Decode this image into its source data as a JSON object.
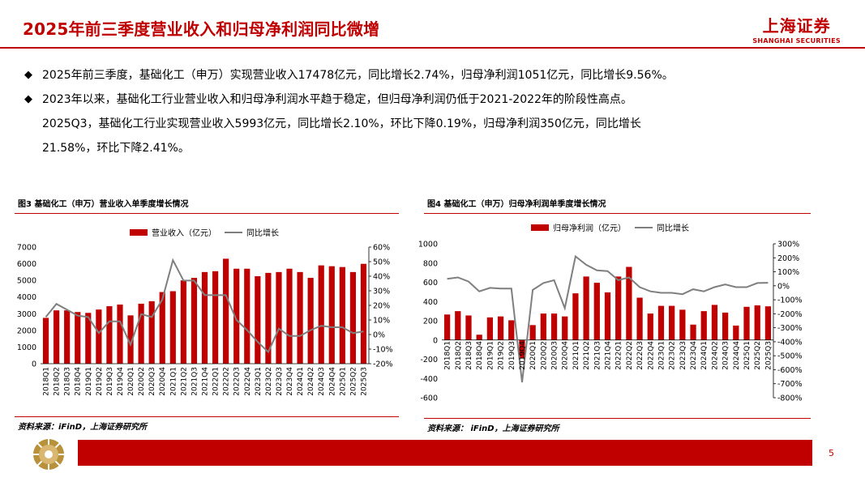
{
  "header": {
    "title": "2025年前三季度营业收入和归母净利润同比微增",
    "brand_cn": "上海证券",
    "brand_en": "SHANGHAI SECURITIES"
  },
  "bullets": [
    "2025年前三季度，基础化工（申万）实现营业收入17478亿元，同比增长2.74%，归母净利润1051亿元，同比增长9.56%。",
    "2023年以来，基础化工行业营业收入和归母净利润水平趋于稳定，但归母净利润仍低于2021-2022年的阶段性高点。"
  ],
  "bullet_continuation": [
    "2025Q3，基础化工行业实现营业收入5993亿元，同比增长2.10%，环比下降0.19%，归母净利润350亿元，同比增长",
    "21.58%，环比下降2.41%。"
  ],
  "bullet_mark": "◆",
  "page_number": "5",
  "colors": {
    "brand_red": "#c00000",
    "bar_red": "#c00000",
    "line_gray": "#7f7f7f"
  },
  "chart_data": [
    {
      "type": "bar",
      "title": "图3 基础化工（申万）营业收入单季度增长情况",
      "source": "资料来源：iFinD，上海证券研究所",
      "categories": [
        "2018Q1",
        "2018Q2",
        "2018Q3",
        "2018Q4",
        "2019Q1",
        "2019Q2",
        "2019Q3",
        "2019Q4",
        "2020Q1",
        "2020Q2",
        "2020Q3",
        "2020Q4",
        "2021Q1",
        "2021Q2",
        "2021Q3",
        "2021Q4",
        "2022Q1",
        "2022Q2",
        "2022Q3",
        "2022Q4",
        "2023Q1",
        "2023Q2",
        "2023Q3",
        "2023Q4",
        "2024Q1",
        "2024Q2",
        "2024Q3",
        "2024Q4",
        "2025Q1",
        "2025Q2",
        "2025Q3"
      ],
      "series": [
        {
          "name": "营业收入（亿元）",
          "kind": "bar",
          "axis": "left",
          "values": [
            2750,
            3200,
            3200,
            3100,
            3050,
            3250,
            3450,
            3550,
            2900,
            3600,
            3750,
            4300,
            4350,
            5000,
            5150,
            5500,
            5550,
            6300,
            5700,
            5700,
            5250,
            5450,
            5500,
            5700,
            5500,
            5150,
            5900,
            5850,
            5800,
            5500,
            5993
          ]
        },
        {
          "name": "同比增长",
          "kind": "line",
          "axis": "right",
          "values": [
            12,
            21,
            17,
            13,
            12,
            1,
            9,
            9,
            -7,
            14,
            12,
            24,
            51,
            37,
            37,
            27,
            27,
            27,
            10,
            3,
            -5,
            -12,
            4,
            -1,
            -1,
            3,
            6,
            5,
            5,
            1,
            2.1
          ]
        }
      ],
      "ylim_left": [
        0,
        7000
      ],
      "yticks_left": [
        "0",
        "1000",
        "2000",
        "3000",
        "4000",
        "5000",
        "6000",
        "7000"
      ],
      "ylim_right": [
        -20,
        60
      ],
      "yticks_right": [
        "-20%",
        "-10%",
        "0%",
        "10%",
        "20%",
        "30%",
        "40%",
        "50%",
        "60%"
      ],
      "legend": "top"
    },
    {
      "type": "bar",
      "title": "图4 基础化工（申万）归母净利润单季度增长情况",
      "source": "资料来源： iFinD，上海证券研究所",
      "categories": [
        "2018Q1",
        "2018Q2",
        "2018Q3",
        "2018Q4",
        "2019Q1",
        "2019Q2",
        "2019Q3",
        "2019Q4",
        "2020Q1",
        "2020Q2",
        "2020Q3",
        "2020Q4",
        "2021Q1",
        "2021Q2",
        "2021Q3",
        "2021Q4",
        "2022Q1",
        "2022Q2",
        "2022Q3",
        "2022Q4",
        "2023Q1",
        "2023Q2",
        "2023Q3",
        "2023Q4",
        "2024Q1",
        "2024Q2",
        "2024Q3",
        "2024Q4",
        "2025Q1",
        "2025Q2",
        "2025Q3"
      ],
      "series": [
        {
          "name": "归母净利润（亿元）",
          "kind": "bar",
          "axis": "left",
          "values": [
            265,
            300,
            255,
            55,
            235,
            245,
            205,
            -190,
            155,
            275,
            275,
            245,
            485,
            660,
            595,
            495,
            660,
            760,
            440,
            275,
            355,
            355,
            315,
            160,
            300,
            365,
            285,
            150,
            345,
            360,
            350
          ]
        },
        {
          "name": "同比增长",
          "kind": "line",
          "axis": "right",
          "values": [
            50,
            60,
            30,
            -40,
            -15,
            -20,
            -20,
            -690,
            -30,
            20,
            40,
            -160,
            210,
            150,
            110,
            105,
            40,
            60,
            -10,
            -40,
            -50,
            -50,
            -60,
            -25,
            -40,
            -10,
            10,
            -10,
            -10,
            20,
            21.58
          ]
        }
      ],
      "ylim_left": [
        -600,
        1000
      ],
      "yticks_left": [
        "-600",
        "-400",
        "-200",
        "0",
        "200",
        "400",
        "600",
        "800",
        "1000"
      ],
      "ylim_right": [
        -800,
        300
      ],
      "yticks_right": [
        "-800%",
        "-700%",
        "-600%",
        "-500%",
        "-400%",
        "-300%",
        "-200%",
        "-100%",
        "0%",
        "100%",
        "200%",
        "300%"
      ],
      "legend": "top"
    }
  ]
}
